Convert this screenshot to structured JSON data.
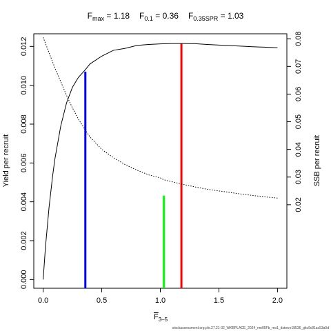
{
  "chart_data": {
    "type": "line",
    "title_parts": [
      {
        "base": "F",
        "sub": "max",
        "value": " = 1.18"
      },
      {
        "base": "F",
        "sub": "0.1",
        "value": " = 0.36"
      },
      {
        "base": "F",
        "sub": "0.35SPR",
        "value": " = 1.03"
      }
    ],
    "xlabel": {
      "base": "F",
      "sub": "3–5"
    },
    "ylabel_left": "Yield per recruit",
    "ylabel_right": "SSB per recruit",
    "xlim": [
      0,
      2.0
    ],
    "ylim_left": [
      0,
      0.0122
    ],
    "ylim_right": [
      0.0,
      0.0805
    ],
    "x_ticks": [
      "0.0",
      "0.5",
      "1.0",
      "1.5",
      "2.0"
    ],
    "y_left_ticks": [
      "0.000",
      "0.002",
      "0.004",
      "0.006",
      "0.008",
      "0.010",
      "0.012"
    ],
    "y_right_ticks": [
      "0.02",
      "0.03",
      "0.04",
      "0.05",
      "0.06",
      "0.07",
      "0.08"
    ],
    "grid": false,
    "series": [
      {
        "axis": "left",
        "style": "solid",
        "color": "#000000",
        "x": [
          0,
          0.02,
          0.05,
          0.08,
          0.1,
          0.15,
          0.2,
          0.25,
          0.3,
          0.36,
          0.4,
          0.5,
          0.6,
          0.7,
          0.8,
          0.9,
          1.0,
          1.1,
          1.18,
          1.3,
          1.4,
          1.5,
          1.6,
          1.7,
          1.8,
          1.9,
          2.0
        ],
        "values": [
          0.0,
          0.0017,
          0.0037,
          0.0053,
          0.0062,
          0.0079,
          0.0091,
          0.0099,
          0.0104,
          0.0108,
          0.0111,
          0.0115,
          0.0118,
          0.0119,
          0.01205,
          0.0121,
          0.01213,
          0.01215,
          0.01215,
          0.01214,
          0.0121,
          0.01207,
          0.01204,
          0.01201,
          0.01198,
          0.01196,
          0.01193
        ]
      },
      {
        "axis": "right",
        "style": "dotted",
        "color": "#000000",
        "x": [
          0,
          0.05,
          0.1,
          0.15,
          0.2,
          0.25,
          0.3,
          0.36,
          0.4,
          0.5,
          0.6,
          0.7,
          0.8,
          0.9,
          1.0,
          1.03,
          1.1,
          1.2,
          1.3,
          1.4,
          1.5,
          1.6,
          1.7,
          1.8,
          1.9,
          2.0
        ],
        "values": [
          0.0805,
          0.075,
          0.0695,
          0.0645,
          0.0595,
          0.055,
          0.051,
          0.047,
          0.0445,
          0.04,
          0.037,
          0.0345,
          0.0325,
          0.0308,
          0.0297,
          0.029,
          0.0283,
          0.0273,
          0.0264,
          0.0256,
          0.025,
          0.0244,
          0.0238,
          0.0233,
          0.0228,
          0.0224
        ]
      }
    ],
    "reference_lines": [
      {
        "x": 0.36,
        "y_top": 0.0107,
        "color": "#0000ff"
      },
      {
        "x": 1.03,
        "y_top": 0.00432,
        "color": "#00ff00"
      },
      {
        "x": 1.18,
        "y_top": 0.01215,
        "color": "#ff0000"
      }
    ]
  },
  "caption": "stockassessment.org,ple.27.21-32_WKBPLACE_2024_nm05Fb_mo1_dstow,r18536_gitc9c81ac53a0d"
}
